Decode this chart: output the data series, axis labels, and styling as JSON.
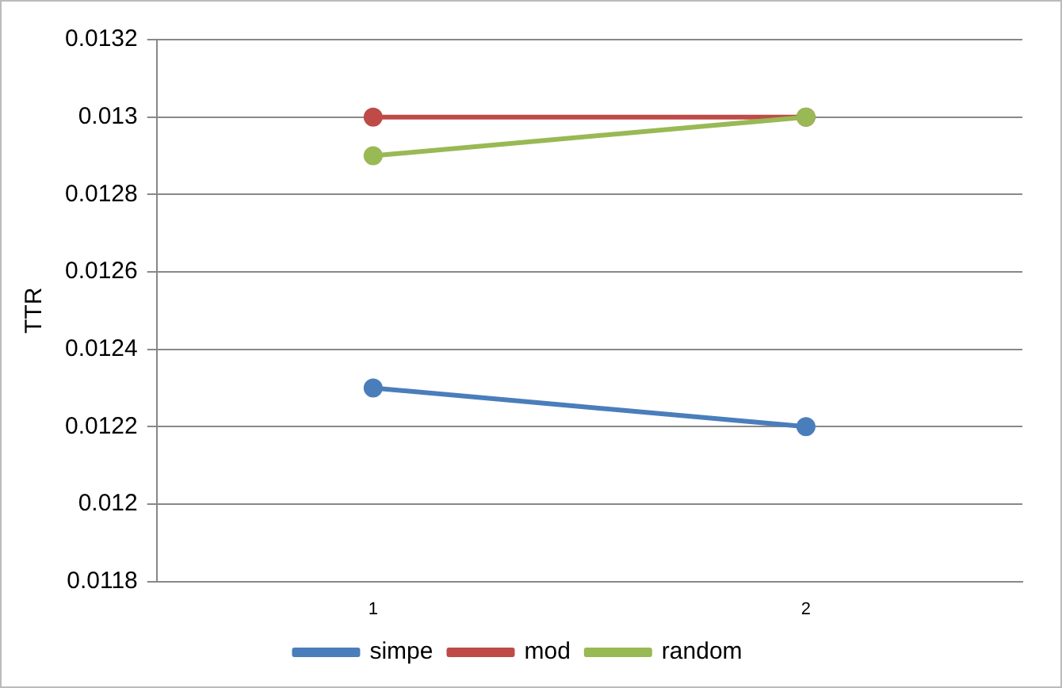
{
  "chart_data": {
    "type": "line",
    "ylabel": "TTR",
    "categories": [
      "1",
      "2"
    ],
    "series": [
      {
        "name": "simpe",
        "color": "#4a7ebb",
        "values": [
          0.0123,
          0.0122
        ]
      },
      {
        "name": "mod",
        "color": "#be4b48",
        "values": [
          0.013,
          0.013
        ]
      },
      {
        "name": "random",
        "color": "#98b954",
        "values": [
          0.0129,
          0.013
        ]
      }
    ],
    "ylim": [
      0.0118,
      0.0132
    ],
    "yticks": [
      0.0118,
      0.012,
      0.0122,
      0.0124,
      0.0126,
      0.0128,
      0.013,
      0.0132
    ],
    "grid": "y",
    "legend": "bottom",
    "marker": "circle",
    "line_style": "solid"
  }
}
